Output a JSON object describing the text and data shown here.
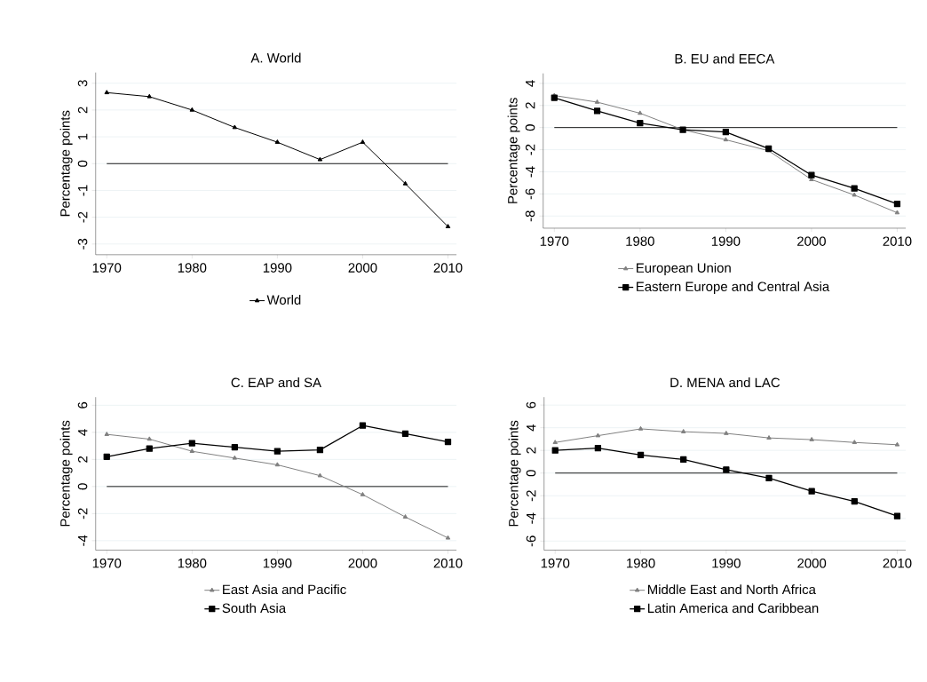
{
  "chart_data": [
    {
      "type": "line",
      "title": "A. World",
      "ylabel": "Percentage points",
      "x": [
        1970,
        1975,
        1980,
        1985,
        1990,
        1995,
        2000,
        2005,
        2010
      ],
      "series": [
        {
          "name": "World",
          "color": "#000000",
          "marker": "triangle",
          "values": [
            2.65,
            2.5,
            2.0,
            1.35,
            0.8,
            0.15,
            0.8,
            -0.75,
            -2.35
          ]
        }
      ],
      "xlim": [
        1968.7,
        2011
      ],
      "ylim": [
        -3.4,
        3.4
      ],
      "xticks": [
        1970,
        1980,
        1990,
        2000,
        2010
      ],
      "yticks": [
        -3,
        -2,
        -1,
        0,
        1,
        2,
        3
      ],
      "grid": "y",
      "legend": "bottom",
      "ref_lines": [
        {
          "axis": "y",
          "value": 0
        }
      ]
    },
    {
      "type": "line",
      "title": "B. EU and EECA",
      "ylabel": "Percentage points",
      "x": [
        1970,
        1975,
        1980,
        1985,
        1990,
        1995,
        2000,
        2005,
        2010
      ],
      "series": [
        {
          "name": "European Union",
          "color": "#808080",
          "marker": "triangle",
          "values": [
            2.9,
            2.3,
            1.3,
            -0.2,
            -1.1,
            -2.1,
            -4.7,
            -6.1,
            -7.7
          ]
        },
        {
          "name": "Eastern Europe and Central Asia",
          "color": "#000000",
          "marker": "square",
          "values": [
            2.7,
            1.5,
            0.4,
            -0.2,
            -0.4,
            -1.9,
            -4.3,
            -5.5,
            -6.9
          ]
        }
      ],
      "xlim": [
        1968.7,
        2011
      ],
      "ylim": [
        -9.1,
        4.9
      ],
      "xticks": [
        1970,
        1980,
        1990,
        2000,
        2010
      ],
      "yticks": [
        -8,
        -6,
        -4,
        -2,
        0,
        2,
        4
      ],
      "grid": "y",
      "legend": "bottom",
      "ref_lines": [
        {
          "axis": "y",
          "value": 0
        }
      ]
    },
    {
      "type": "line",
      "title": "C. EAP and SA",
      "ylabel": "Percentage points",
      "x": [
        1970,
        1975,
        1980,
        1985,
        1990,
        1995,
        2000,
        2005,
        2010
      ],
      "series": [
        {
          "name": "East Asia and Pacific",
          "color": "#808080",
          "marker": "triangle",
          "values": [
            3.85,
            3.5,
            2.6,
            2.1,
            1.6,
            0.8,
            -0.6,
            -2.25,
            -3.8
          ]
        },
        {
          "name": "South Asia",
          "color": "#000000",
          "marker": "square",
          "values": [
            2.2,
            2.8,
            3.2,
            2.9,
            2.6,
            2.7,
            4.5,
            3.9,
            3.3
          ]
        }
      ],
      "xlim": [
        1968.7,
        2011
      ],
      "ylim": [
        -4.7,
        6.6
      ],
      "xticks": [
        1970,
        1980,
        1990,
        2000,
        2010
      ],
      "yticks": [
        -4,
        -2,
        0,
        2,
        4,
        6
      ],
      "grid": "y",
      "legend": "bottom",
      "ref_lines": [
        {
          "axis": "y",
          "value": 0
        }
      ]
    },
    {
      "type": "line",
      "title": "D. MENA and LAC",
      "ylabel": "Percentage points",
      "x": [
        1970,
        1975,
        1980,
        1985,
        1990,
        1995,
        2000,
        2005,
        2010
      ],
      "series": [
        {
          "name": "Middle East and North Africa",
          "color": "#808080",
          "marker": "triangle",
          "values": [
            2.7,
            3.3,
            3.9,
            3.65,
            3.5,
            3.1,
            2.95,
            2.7,
            2.5
          ]
        },
        {
          "name": "Latin America and Caribbean",
          "color": "#000000",
          "marker": "square",
          "values": [
            2.0,
            2.2,
            1.6,
            1.2,
            0.3,
            -0.45,
            -1.6,
            -2.5,
            -3.8
          ]
        }
      ],
      "xlim": [
        1968.7,
        2011
      ],
      "ylim": [
        -6.8,
        6.7
      ],
      "xticks": [
        1970,
        1980,
        1990,
        2000,
        2010
      ],
      "yticks": [
        -6,
        -4,
        -2,
        0,
        2,
        4,
        6
      ],
      "grid": "y",
      "legend": "bottom",
      "ref_lines": [
        {
          "axis": "y",
          "value": 0
        }
      ]
    }
  ]
}
